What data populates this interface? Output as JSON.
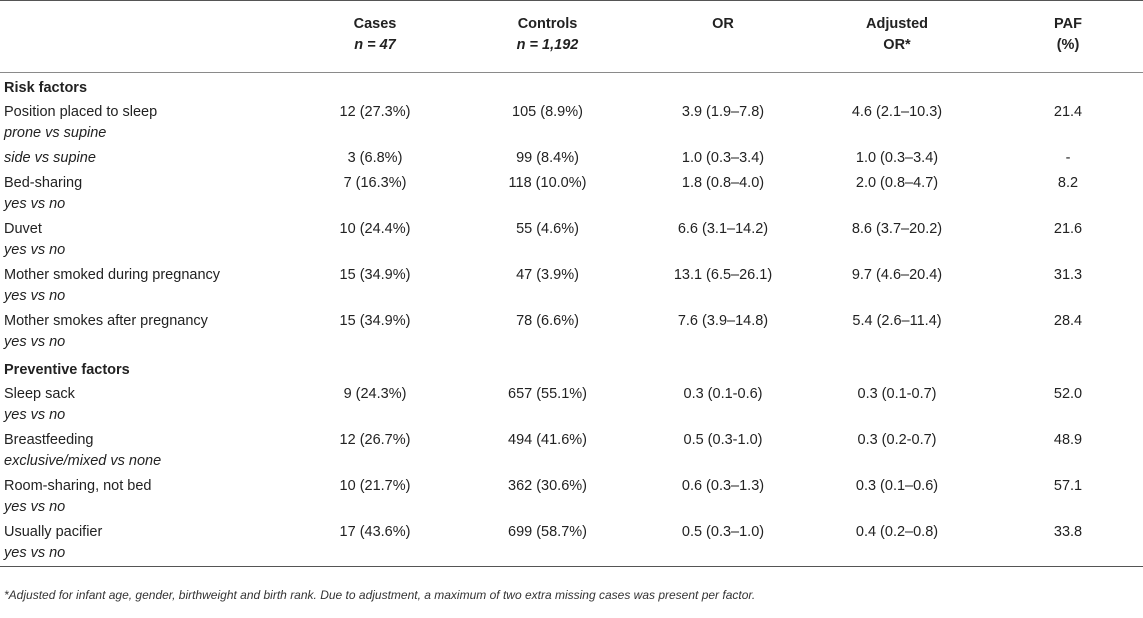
{
  "table": {
    "headers": {
      "cases": "Cases",
      "cases_n": "n = 47",
      "controls": "Controls",
      "controls_n": "n = 1,192",
      "or": "OR",
      "adjusted_line1": "Adjusted",
      "adjusted_line2": "OR*",
      "paf_line1": "PAF",
      "paf_line2": "(%)"
    },
    "sections": [
      {
        "title": "Risk factors",
        "rows": [
          {
            "factor": "Position placed to sleep",
            "sub": "prone vs supine",
            "cases": "12 (27.3%)",
            "controls": "105 (8.9%)",
            "or": "3.9 (1.9–7.8)",
            "adj": "4.6 (2.1–10.3)",
            "paf": "21.4"
          },
          {
            "factor": "",
            "sub": "side vs supine",
            "cases": "3 (6.8%)",
            "controls": "99 (8.4%)",
            "or": "1.0 (0.3–3.4)",
            "adj": "1.0 (0.3–3.4)",
            "paf": "-"
          },
          {
            "factor": "Bed-sharing",
            "sub": "yes vs no",
            "cases": "7 (16.3%)",
            "controls": "118 (10.0%)",
            "or": "1.8 (0.8–4.0)",
            "adj": "2.0 (0.8–4.7)",
            "paf": "8.2"
          },
          {
            "factor": "Duvet",
            "sub": "yes vs no",
            "cases": "10 (24.4%)",
            "controls": "55 (4.6%)",
            "or": "6.6 (3.1–14.2)",
            "adj": "8.6 (3.7–20.2)",
            "paf": "21.6"
          },
          {
            "factor": "Mother smoked during pregnancy",
            "sub": "yes vs no",
            "cases": "15 (34.9%)",
            "controls": "47 (3.9%)",
            "or": "13.1 (6.5–26.1)",
            "adj": "9.7 (4.6–20.4)",
            "paf": "31.3"
          },
          {
            "factor": "Mother smokes after pregnancy",
            "sub": "yes vs no",
            "cases": "15 (34.9%)",
            "controls": "78 (6.6%)",
            "or": "7.6 (3.9–14.8)",
            "adj": "5.4 (2.6–11.4)",
            "paf": "28.4"
          }
        ]
      },
      {
        "title": "Preventive factors",
        "rows": [
          {
            "factor": "Sleep sack",
            "sub": "yes vs no",
            "cases": "9 (24.3%)",
            "controls": "657 (55.1%)",
            "or": "0.3 (0.1-0.6)",
            "adj": "0.3 (0.1-0.7)",
            "paf": "52.0"
          },
          {
            "factor": "Breastfeeding",
            "sub": "exclusive/mixed vs none",
            "cases": "12 (26.7%)",
            "controls": "494 (41.6%)",
            "or": "0.5 (0.3-1.0)",
            "adj": "0.3 (0.2-0.7)",
            "paf": "48.9"
          },
          {
            "factor": "Room-sharing, not bed",
            "sub": "yes vs no",
            "cases": "10 (21.7%)",
            "controls": "362 (30.6%)",
            "or": "0.6 (0.3–1.3)",
            "adj": "0.3 (0.1–0.6)",
            "paf": "57.1"
          },
          {
            "factor": "Usually pacifier",
            "sub": "yes vs no",
            "cases": "17 (43.6%)",
            "controls": "699 (58.7%)",
            "or": "0.5 (0.3–1.0)",
            "adj": "0.4 (0.2–0.8)",
            "paf": "33.8"
          }
        ]
      }
    ]
  },
  "footnote": "*Adjusted for infant age, gender, birthweight and birth rank. Due to adjustment, a maximum of two extra missing cases was present per factor."
}
